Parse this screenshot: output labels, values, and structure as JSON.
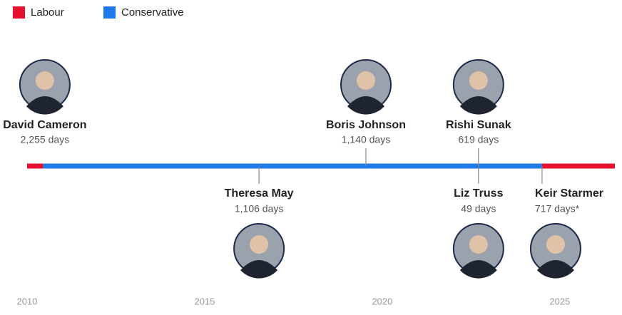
{
  "chart_data": {
    "type": "timeline",
    "series": [
      {
        "name": "Labour",
        "color": "#e8112d"
      },
      {
        "name": "Conservative",
        "color": "#1f7bea"
      }
    ],
    "segments": [
      {
        "start": 2010,
        "end": 2010.45,
        "color": "#e8112d"
      },
      {
        "start": 2010.45,
        "end": 2024.5,
        "color": "#1f7bea"
      },
      {
        "start": 2024.5,
        "end": 2026.55,
        "color": "#e8112d"
      }
    ],
    "categories": [
      "David Cameron",
      "Theresa May",
      "Boris Johnson",
      "Liz Truss",
      "Rishi Sunak",
      "Keir Starmer"
    ],
    "x": [
      2010.5,
      2016.53,
      2019.54,
      2022.71,
      2022.71,
      2024.5
    ],
    "side": [
      "above",
      "below",
      "above",
      "below",
      "above",
      "below"
    ],
    "values": [
      2255,
      1106,
      1140,
      49,
      619,
      717
    ],
    "value_labels": [
      "2,255 days",
      "1,106 days",
      "1,140 days",
      "49 days",
      "619 days",
      "717 days*"
    ],
    "xlim": [
      2010,
      2026.55
    ],
    "xticks": [
      2010,
      2015,
      2020,
      2025
    ]
  }
}
